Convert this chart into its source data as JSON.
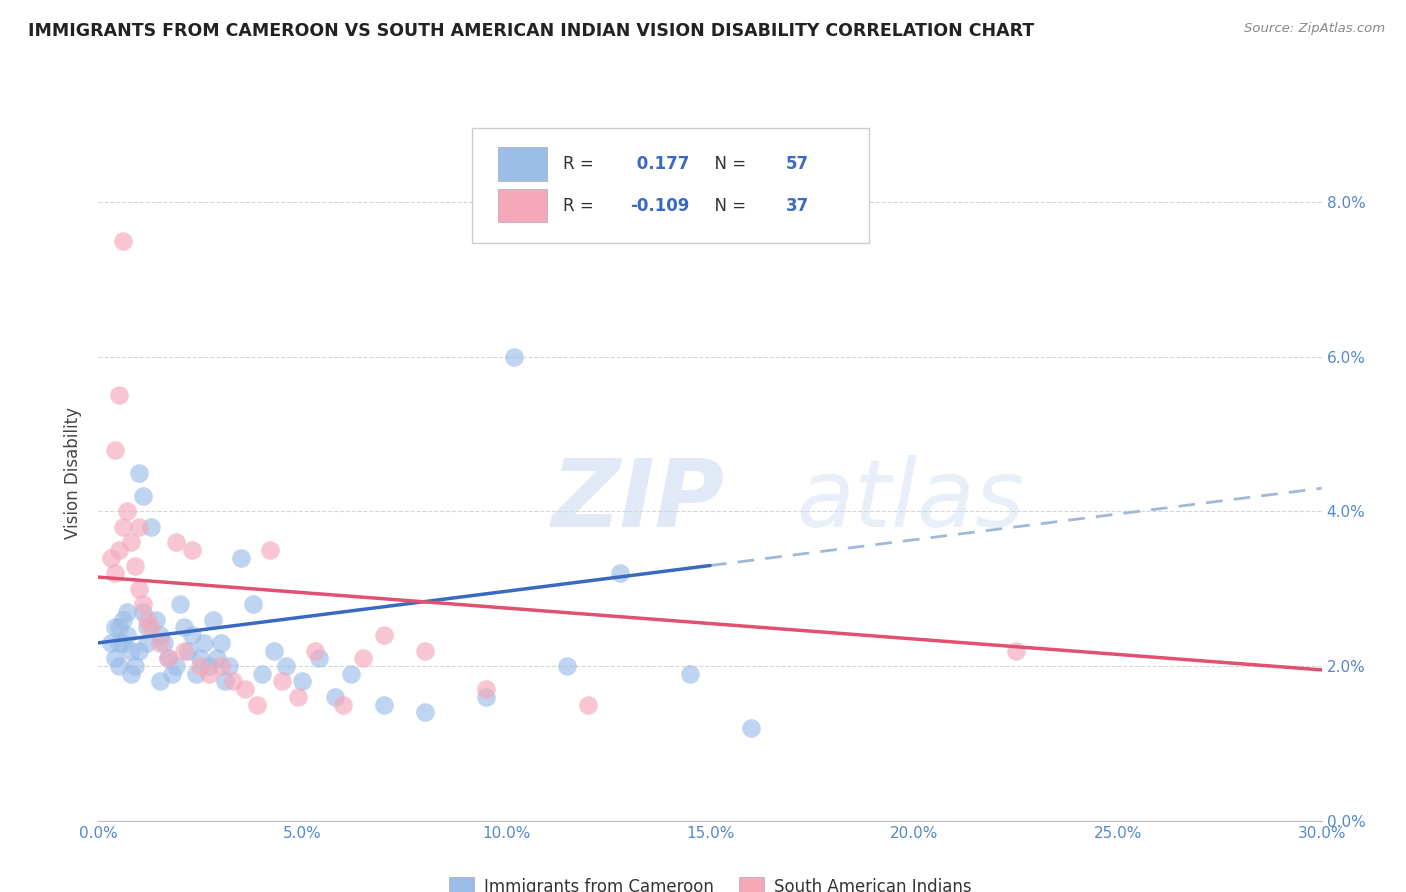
{
  "title": "IMMIGRANTS FROM CAMEROON VS SOUTH AMERICAN INDIAN VISION DISABILITY CORRELATION CHART",
  "source": "Source: ZipAtlas.com",
  "ylabel": "Vision Disability",
  "xlabel_vals": [
    0.0,
    5.0,
    10.0,
    15.0,
    20.0,
    25.0,
    30.0
  ],
  "ylabel_vals": [
    0.0,
    2.0,
    4.0,
    6.0,
    8.0
  ],
  "xlim": [
    0.0,
    30.0
  ],
  "ylim": [
    0.0,
    9.0
  ],
  "R_blue": 0.177,
  "N_blue": 57,
  "R_pink": -0.109,
  "N_pink": 37,
  "blue_color": "#9bbde8",
  "pink_color": "#f4a8ba",
  "blue_line_color": "#3a6abf",
  "pink_line_color": "#e05070",
  "dashed_line_color": "#a0b8d8",
  "watermark_zip": "ZIP",
  "watermark_atlas": "atlas",
  "legend_label_blue": "Immigrants from Cameroon",
  "legend_label_pink": "South American Indians",
  "blue_scatter_x": [
    0.3,
    0.4,
    0.5,
    0.5,
    0.6,
    0.6,
    0.7,
    0.8,
    0.8,
    0.9,
    1.0,
    1.0,
    1.1,
    1.1,
    1.2,
    1.2,
    1.3,
    1.4,
    1.5,
    1.5,
    1.6,
    1.7,
    1.8,
    1.9,
    2.0,
    2.1,
    2.2,
    2.3,
    2.4,
    2.5,
    2.6,
    2.7,
    2.8,
    2.9,
    3.0,
    3.1,
    3.2,
    3.5,
    3.8,
    4.0,
    4.3,
    4.6,
    5.0,
    5.4,
    5.8,
    6.2,
    7.0,
    8.0,
    9.5,
    10.2,
    11.5,
    12.8,
    14.5,
    16.0,
    0.4,
    0.5,
    0.7
  ],
  "blue_scatter_y": [
    2.3,
    2.1,
    2.5,
    2.0,
    2.3,
    2.6,
    2.4,
    2.2,
    1.9,
    2.0,
    2.2,
    4.5,
    2.7,
    4.2,
    2.3,
    2.5,
    3.8,
    2.6,
    2.4,
    1.8,
    2.3,
    2.1,
    1.9,
    2.0,
    2.8,
    2.5,
    2.2,
    2.4,
    1.9,
    2.1,
    2.3,
    2.0,
    2.6,
    2.1,
    2.3,
    1.8,
    2.0,
    3.4,
    2.8,
    1.9,
    2.2,
    2.0,
    1.8,
    2.1,
    1.6,
    1.9,
    1.5,
    1.4,
    1.6,
    6.0,
    2.0,
    3.2,
    1.9,
    1.2,
    2.5,
    2.3,
    2.7
  ],
  "pink_scatter_x": [
    0.3,
    0.4,
    0.5,
    0.6,
    0.7,
    0.8,
    0.9,
    1.0,
    1.0,
    1.1,
    1.2,
    1.3,
    1.5,
    1.7,
    1.9,
    2.1,
    2.3,
    2.5,
    2.7,
    3.0,
    3.3,
    3.6,
    3.9,
    4.2,
    4.5,
    4.9,
    5.3,
    6.0,
    6.5,
    7.0,
    8.0,
    9.5,
    12.0,
    22.5,
    0.4,
    0.5,
    0.6
  ],
  "pink_scatter_y": [
    3.4,
    3.2,
    3.5,
    3.8,
    4.0,
    3.6,
    3.3,
    3.0,
    3.8,
    2.8,
    2.6,
    2.5,
    2.3,
    2.1,
    3.6,
    2.2,
    3.5,
    2.0,
    1.9,
    2.0,
    1.8,
    1.7,
    1.5,
    3.5,
    1.8,
    1.6,
    2.2,
    1.5,
    2.1,
    2.4,
    2.2,
    1.7,
    1.5,
    2.2,
    4.8,
    5.5,
    7.5
  ],
  "blue_line_x0": 0.0,
  "blue_line_x1": 15.0,
  "blue_line_y0": 2.3,
  "blue_line_y1": 3.3,
  "blue_dash_x0": 15.0,
  "blue_dash_x1": 30.0,
  "blue_dash_y0": 3.3,
  "blue_dash_y1": 4.3,
  "pink_line_x0": 0.0,
  "pink_line_x1": 30.0,
  "pink_line_y0": 3.15,
  "pink_line_y1": 1.95
}
